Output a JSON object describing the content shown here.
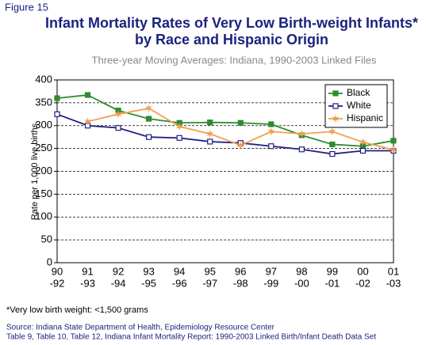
{
  "chart_data": {
    "type": "line",
    "figure_label": "Figure 15",
    "title": [
      "Infant Mortality Rates of Very Low Birth-weight Infants*",
      "by Race and Hispanic Origin"
    ],
    "subtitle": "Three-year Moving Averages: Indiana, 1990-2003 Linked Files",
    "y_label": "Rate per 1,000 live births",
    "categories": [
      [
        "90",
        "-92"
      ],
      [
        "91",
        "-93"
      ],
      [
        "92",
        "-94"
      ],
      [
        "93",
        "-95"
      ],
      [
        "94",
        "-96"
      ],
      [
        "95",
        "-97"
      ],
      [
        "96",
        "-98"
      ],
      [
        "97",
        "-99"
      ],
      [
        "98",
        "-00"
      ],
      [
        "99",
        "-01"
      ],
      [
        "00",
        "-02"
      ],
      [
        "01",
        "-03"
      ]
    ],
    "series": [
      {
        "name": "Black",
        "color": "#2e8b2e",
        "marker": "filled-square",
        "values": [
          360,
          367,
          333,
          315,
          306,
          307,
          306,
          303,
          279,
          259,
          255,
          267
        ]
      },
      {
        "name": "White",
        "color": "#1f1f80",
        "marker": "open-square",
        "values": [
          325,
          300,
          295,
          275,
          273,
          265,
          262,
          255,
          248,
          238,
          245,
          245
        ]
      },
      {
        "name": "Hispanic",
        "color": "#f0a050",
        "marker": "star",
        "values": [
          null,
          309,
          325,
          338,
          298,
          282,
          257,
          287,
          282,
          287,
          264,
          247
        ]
      }
    ],
    "ylim": [
      0,
      400
    ],
    "yticks": [
      0,
      50,
      100,
      150,
      200,
      250,
      300,
      350,
      400
    ],
    "grid": true,
    "legend": "top-right",
    "footnote": "*Very low birth weight: <1,500 grams",
    "source": [
      "Source: Indiana State Department of Health, Epidemiology Resource Center",
      "Table 9, Table 10, Table 12, Indiana Infant Mortality Report: 1990-2003 Linked Birth/Infant Death Data Set"
    ]
  }
}
